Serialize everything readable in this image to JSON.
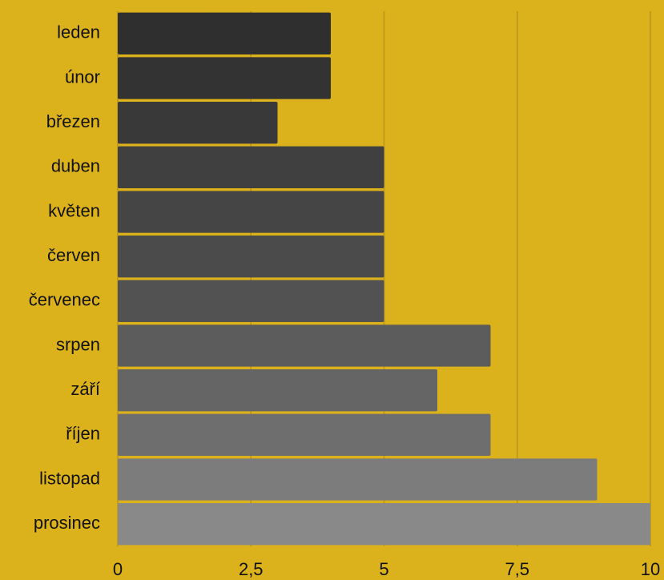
{
  "chart_data": {
    "type": "hbar",
    "categories": [
      "leden",
      "únor",
      "březen",
      "duben",
      "květen",
      "červen",
      "červenec",
      "srpen",
      "září",
      "říjen",
      "listopad",
      "prosinec"
    ],
    "values": [
      4,
      4,
      3,
      5,
      5,
      5,
      5,
      7,
      6,
      7,
      9,
      10
    ],
    "colors": [
      "#2f2f2f",
      "#333333",
      "#393939",
      "#404040",
      "#454545",
      "#4b4b4b",
      "#525252",
      "#5c5c5c",
      "#656565",
      "#6e6e6e",
      "#7c7c7c",
      "#898989"
    ],
    "xlim": [
      0,
      10
    ],
    "xticks": [
      0,
      {
        "value": 2.5,
        "label": "2,5"
      },
      5,
      {
        "value": 7.5,
        "label": "7,5"
      },
      10
    ],
    "grid": true
  }
}
